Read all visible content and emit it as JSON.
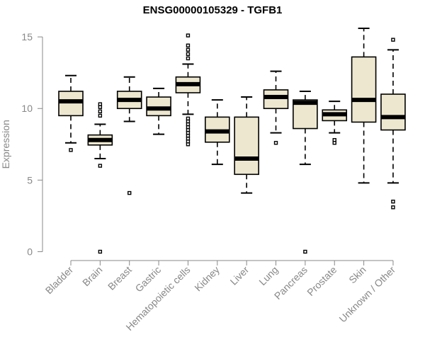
{
  "chart_data": {
    "type": "box",
    "title": "ENSG00000105329 - TGFB1",
    "xlabel": "",
    "ylabel": "Expression",
    "ylim": [
      0,
      15.5
    ],
    "yticks": [
      0,
      5,
      10,
      15
    ],
    "grid": false,
    "legend": "none",
    "colors": {
      "box_fill": "#ede7cf",
      "outline": "#000000",
      "axis_text": "#888888"
    },
    "categories": [
      "Bladder",
      "Brain",
      "Breast",
      "Gastric",
      "Hematopoietic cells",
      "Kidney",
      "Liver",
      "Lung",
      "Pancreas",
      "Prostate",
      "Skin",
      "Unknown / Other"
    ],
    "boxes": [
      {
        "category": "Bladder",
        "whisker_low": 7.6,
        "q1": 9.5,
        "median": 10.5,
        "q3": 11.2,
        "whisker_high": 12.3,
        "outliers": [
          7.1
        ]
      },
      {
        "category": "Brain",
        "whisker_low": 6.5,
        "q1": 7.45,
        "median": 7.8,
        "q3": 8.15,
        "whisker_high": 8.9,
        "outliers": [
          0.0,
          6.0,
          9.5,
          9.8,
          10.1,
          10.3
        ]
      },
      {
        "category": "Breast",
        "whisker_low": 9.1,
        "q1": 10.0,
        "median": 10.6,
        "q3": 11.2,
        "whisker_high": 12.2,
        "outliers": [
          4.1
        ]
      },
      {
        "category": "Gastric",
        "whisker_low": 8.2,
        "q1": 9.5,
        "median": 10.0,
        "q3": 10.8,
        "whisker_high": 11.4,
        "outliers": []
      },
      {
        "category": "Hematopoietic cells",
        "whisker_low": 9.6,
        "q1": 11.1,
        "median": 11.7,
        "q3": 12.2,
        "whisker_high": 13.1,
        "outliers": [
          7.5,
          7.7,
          7.9,
          8.1,
          8.3,
          8.5,
          8.7,
          8.9,
          9.1,
          9.3,
          13.5,
          13.8,
          14.1,
          14.4,
          15.1
        ]
      },
      {
        "category": "Kidney",
        "whisker_low": 6.1,
        "q1": 7.65,
        "median": 8.4,
        "q3": 9.4,
        "whisker_high": 10.6,
        "outliers": []
      },
      {
        "category": "Liver",
        "whisker_low": 4.1,
        "q1": 5.4,
        "median": 6.5,
        "q3": 9.4,
        "whisker_high": 10.8,
        "outliers": []
      },
      {
        "category": "Lung",
        "whisker_low": 8.3,
        "q1": 10.0,
        "median": 10.8,
        "q3": 11.3,
        "whisker_high": 12.6,
        "outliers": [
          7.6
        ]
      },
      {
        "category": "Pancreas",
        "whisker_low": 6.1,
        "q1": 8.6,
        "median": 10.4,
        "q3": 10.6,
        "whisker_high": 11.2,
        "outliers": [
          0.0
        ]
      },
      {
        "category": "Prostate",
        "whisker_low": 8.3,
        "q1": 9.15,
        "median": 9.6,
        "q3": 9.9,
        "whisker_high": 10.5,
        "outliers": [
          7.6,
          7.8
        ]
      },
      {
        "category": "Skin",
        "whisker_low": 4.8,
        "q1": 9.05,
        "median": 10.6,
        "q3": 13.6,
        "whisker_high": 15.6,
        "outliers": []
      },
      {
        "category": "Unknown / Other",
        "whisker_low": 4.8,
        "q1": 8.5,
        "median": 9.4,
        "q3": 11.0,
        "whisker_high": 14.1,
        "outliers": [
          14.8,
          3.1,
          3.5
        ]
      }
    ]
  }
}
